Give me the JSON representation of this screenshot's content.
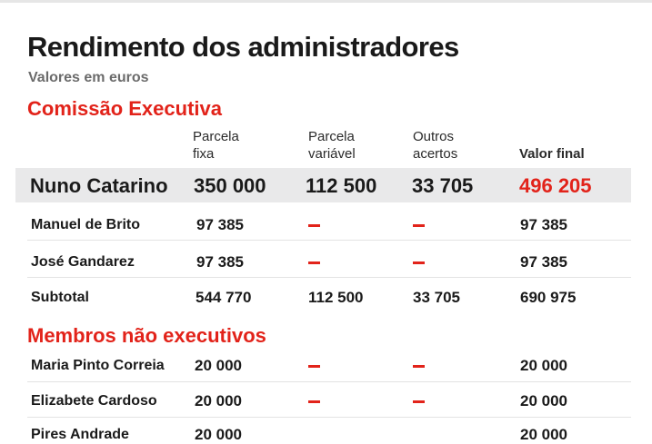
{
  "title": "Rendimento dos administradores",
  "subtitle": "Valores em euros",
  "section_executive": "Comissão Executiva",
  "section_non_executive": "Membros não executivos",
  "columns": {
    "fixed_line1": "Parcela",
    "fixed_line2": "fixa",
    "variable_line1": "Parcela",
    "variable_line2": "variável",
    "other_line1": "Outros",
    "other_line2": "acertos",
    "final": "Valor final"
  },
  "colors": {
    "accent": "#e2231a",
    "highlight_row": "#e9e9ea"
  },
  "executive_rows": [
    {
      "name": "Nuno Catarino",
      "fixed": "350 000",
      "variable": "112 500",
      "other": "33 705",
      "final": "496 205"
    },
    {
      "name": "Manuel de Brito",
      "fixed": "97 385",
      "variable": "–",
      "other": "–",
      "final": "97 385"
    },
    {
      "name": "José Gandarez",
      "fixed": "97 385",
      "variable": "–",
      "other": "–",
      "final": "97 385"
    },
    {
      "name": "Subtotal",
      "fixed": "544 770",
      "variable": "112 500",
      "other": "33 705",
      "final": "690 975"
    }
  ],
  "non_executive_rows": [
    {
      "name": "Maria Pinto Correia",
      "fixed": "20 000",
      "variable": "–",
      "other": "–",
      "final": "20 000"
    },
    {
      "name": "Elizabete Cardoso",
      "fixed": "20 000",
      "variable": "–",
      "other": "–",
      "final": "20 000"
    },
    {
      "name": "Pires Andrade",
      "fixed": "20 000",
      "variable": "–",
      "other": "–",
      "final": "20 000"
    }
  ]
}
